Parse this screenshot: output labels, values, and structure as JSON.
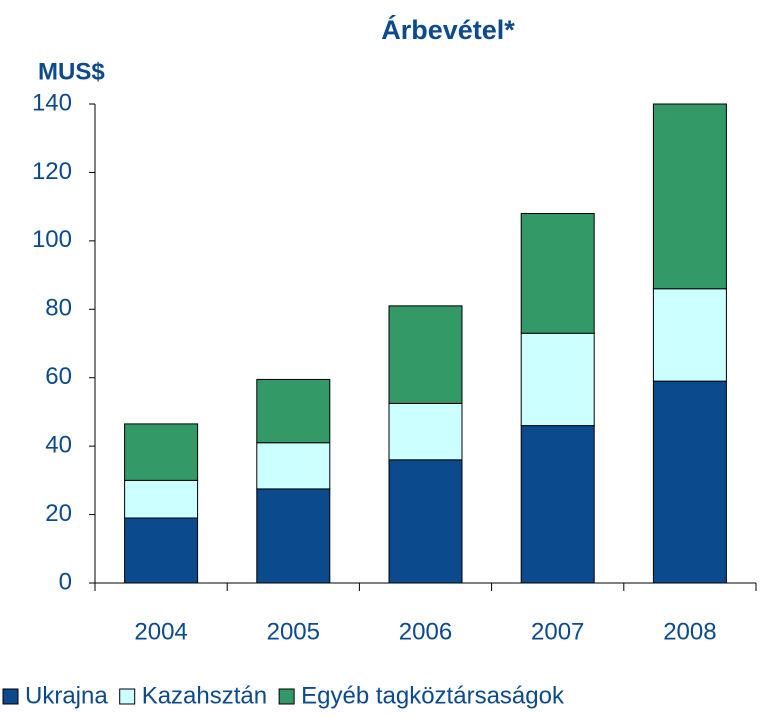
{
  "chart_data": {
    "type": "stacked_bar",
    "title": "Árbevétel*",
    "y_label": "MUS$",
    "categories": [
      "2004",
      "2005",
      "2006",
      "2007",
      "2008"
    ],
    "series": [
      {
        "name": "Ukrajna",
        "color": "#0b4a8c",
        "values": [
          19,
          27.5,
          36,
          46,
          59
        ]
      },
      {
        "name": "Kazahsztán",
        "color": "#ccffff",
        "values": [
          11,
          13.5,
          16.5,
          27,
          27
        ]
      },
      {
        "name": "Egyéb tagköztársaságok",
        "color": "#339966",
        "values": [
          16.5,
          18.5,
          28.5,
          35,
          54
        ]
      }
    ],
    "ylim": [
      0,
      140
    ],
    "yticks": [
      0,
      20,
      40,
      60,
      80,
      100,
      120,
      140
    ],
    "legend": "bottom"
  }
}
